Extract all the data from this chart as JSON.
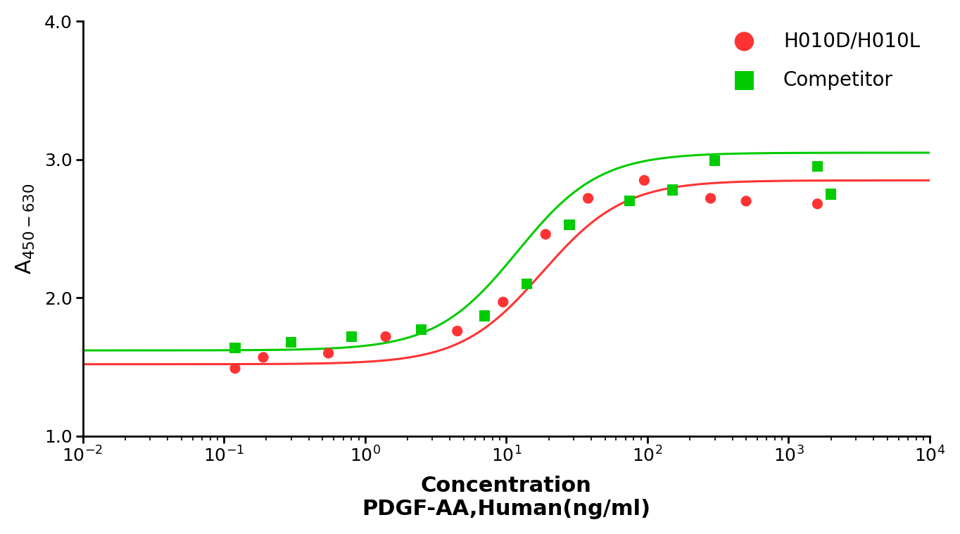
{
  "red_x": [
    0.12,
    0.19,
    0.55,
    1.4,
    4.5,
    9.5,
    19,
    38,
    95,
    280,
    500,
    1600
  ],
  "red_y": [
    1.49,
    1.57,
    1.6,
    1.72,
    1.76,
    1.97,
    2.46,
    2.72,
    2.85,
    2.72,
    2.7,
    2.68
  ],
  "green_x": [
    0.12,
    0.3,
    0.8,
    2.5,
    7.0,
    14,
    28,
    75,
    150,
    300,
    1600,
    2000
  ],
  "green_y": [
    1.64,
    1.68,
    1.72,
    1.77,
    1.87,
    2.1,
    2.53,
    2.7,
    2.78,
    2.99,
    2.95,
    2.75
  ],
  "red_p0": [
    1.52,
    2.85,
    18.0,
    1.5
  ],
  "green_p0": [
    1.62,
    3.05,
    12.0,
    1.5
  ],
  "red_color": "#FF3333",
  "green_color": "#00CC00",
  "marker_red": "o",
  "marker_green": "s",
  "xlabel_line1": "Concentration",
  "xlabel_line2": "PDGF-AA,Human(ng/ml)",
  "ylabel": "A$_{450-630}$",
  "ylim": [
    1.0,
    4.0
  ],
  "xlim_log": [
    -2,
    4
  ],
  "legend_label_red": "H010D/H010L",
  "legend_label_green": "Competitor",
  "yticks": [
    1.0,
    2.0,
    3.0,
    4.0
  ],
  "background_color": "#ffffff",
  "legend_fontsize": 20,
  "axis_label_fontsize": 22,
  "tick_fontsize": 18,
  "marker_size": 120,
  "line_width": 2.2
}
